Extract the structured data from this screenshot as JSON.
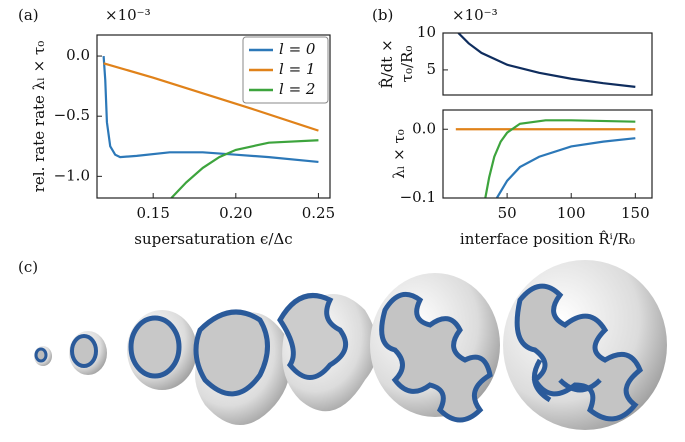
{
  "chart_data": [
    {
      "type": "line",
      "panel_label": "(a)",
      "offset_label": "×10⁻³",
      "x_label": "supersaturation ϵ/Δc",
      "y_label": "rel. rate rate λₗ × τ₀",
      "xlim": [
        0.116,
        0.257
      ],
      "ylim": [
        -1.18,
        0.175
      ],
      "xticks": [
        0.15,
        {
          "value": 0.2,
          "label": "0.20"
        },
        0.25
      ],
      "yticks": [
        {
          "value": 0,
          "label": "0.0"
        },
        {
          "value": -0.5,
          "label": "−0.5"
        },
        {
          "value": -1,
          "label": "−1.0"
        }
      ],
      "legend": "upper right",
      "series": [
        {
          "name": "l = 0",
          "color": "#2c78b8",
          "x": [
            0.12,
            0.121,
            0.122,
            0.124,
            0.127,
            0.13,
            0.14,
            0.16,
            0.18,
            0.2,
            0.22,
            0.25
          ],
          "values": [
            0,
            -0.2,
            -0.55,
            -0.75,
            -0.82,
            -0.84,
            -0.83,
            -0.8,
            -0.8,
            -0.82,
            -0.84,
            -0.88
          ]
        },
        {
          "name": "l = 1",
          "color": "#e0821a",
          "x": [
            0.12,
            0.15,
            0.18,
            0.21,
            0.25
          ],
          "values": [
            -0.06,
            -0.18,
            -0.31,
            -0.44,
            -0.62
          ]
        },
        {
          "name": "l = 2",
          "color": "#3da43d",
          "x": [
            0.161,
            0.17,
            0.18,
            0.19,
            0.2,
            0.22,
            0.25
          ],
          "values": [
            -1.18,
            -1.05,
            -0.93,
            -0.84,
            -0.78,
            -0.72,
            -0.7
          ]
        }
      ]
    },
    {
      "type": "line",
      "panel_label": "(b)",
      "offset_label": "×10⁻³",
      "y_label": [
        "R̂/dt ×",
        "τ₀/R₀"
      ],
      "xlim": [
        0,
        163
      ],
      "ylim": [
        1.6,
        10
      ],
      "yticks": [
        5,
        10
      ],
      "series": [
        {
          "color": "#0f2d5e",
          "x": [
            12,
            20,
            30,
            50,
            75,
            100,
            125,
            150
          ],
          "values": [
            10,
            8.6,
            7.3,
            5.7,
            4.6,
            3.8,
            3.2,
            2.7
          ]
        }
      ]
    },
    {
      "type": "line",
      "x_label": "interface position R̂ⁱ/R₀",
      "y_label": "λₗ × τ₀",
      "xlim": [
        0,
        163
      ],
      "ylim": [
        -0.1,
        0.028
      ],
      "xticks": [
        50,
        100,
        150
      ],
      "yticks": [
        {
          "value": 0,
          "label": "0.0"
        },
        {
          "value": -0.1,
          "label": "−0.1"
        }
      ],
      "series": [
        {
          "color": "#2c78b8",
          "x": [
            42,
            50,
            60,
            75,
            100,
            125,
            150
          ],
          "values": [
            -0.1,
            -0.075,
            -0.055,
            -0.04,
            -0.025,
            -0.018,
            -0.013
          ]
        },
        {
          "color": "#e0821a",
          "x": [
            10,
            150
          ],
          "values": [
            0,
            0
          ]
        },
        {
          "color": "#3da43d",
          "x": [
            33,
            36,
            40,
            45,
            50,
            60,
            80,
            100,
            150
          ],
          "values": [
            -0.1,
            -0.07,
            -0.04,
            -0.018,
            -0.005,
            0.008,
            0.013,
            0.013,
            0.011
          ]
        }
      ]
    }
  ],
  "renderings": {
    "panel_label": "(c)"
  }
}
